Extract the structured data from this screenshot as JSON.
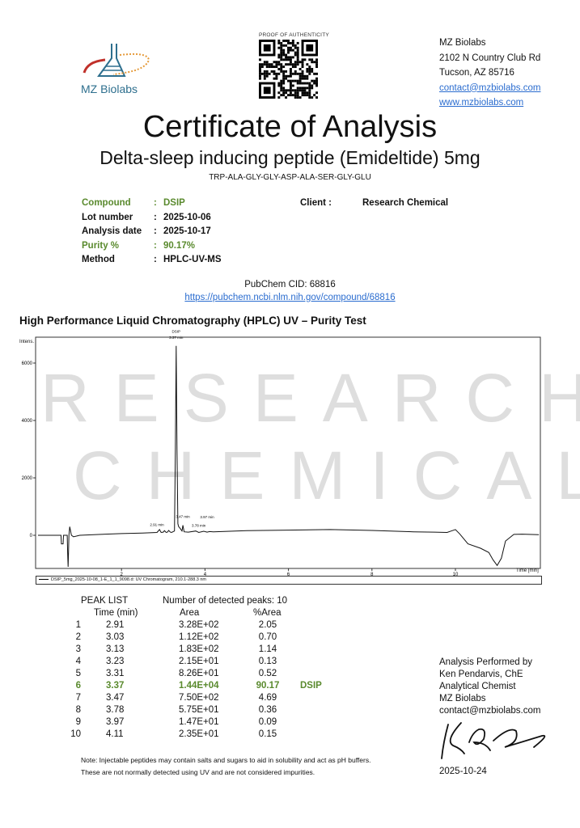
{
  "header": {
    "logo_text": "MZ Biolabs",
    "qr_label": "PROOF OF AUTHENTICITY",
    "address": {
      "company": "MZ Biolabs",
      "street": "2102 N Country Club Rd",
      "city": "Tucson, AZ 85716",
      "email": "contact@mzbiolabs.com",
      "website": "www.mzbiolabs.com"
    }
  },
  "title": "Certificate of Analysis",
  "subtitle": "Delta-sleep inducing peptide (Emideltide) 5mg",
  "sequence": "TRP-ALA-GLY-GLY-ASP-ALA-SER-GLY-GLU",
  "info": [
    {
      "label": "Compound",
      "value": "DSIP",
      "highlight": true
    },
    {
      "label": "Lot number",
      "value": "2025-10-06",
      "highlight": false
    },
    {
      "label": "Analysis date",
      "value": "2025-10-17",
      "highlight": false
    },
    {
      "label": "Purity %",
      "value": "90.17%",
      "highlight": true
    },
    {
      "label": "Method",
      "value": "HPLC-UV-MS",
      "highlight": false
    }
  ],
  "separator": ":",
  "client": {
    "label": "Client :",
    "value": "Research Chemical"
  },
  "pubchem": {
    "cid": "PubChem CID: 68816",
    "url": "https://pubchem.ncbi.nlm.nih.gov/compound/68816"
  },
  "section_title": "High Performance Liquid Chromatography (HPLC) UV – Purity Test",
  "watermark": {
    "line1": "RESEARCH",
    "line2": "CHEMICAL"
  },
  "colors": {
    "accent_green": "#5a8a2e",
    "link": "#2a6ccf",
    "logo_blue": "#2e6f8e"
  },
  "chart_data": {
    "type": "line",
    "ylabel": "Intens.",
    "xlabel": "Time [min]",
    "xlim": [
      0,
      12
    ],
    "ylim": [
      -1150,
      7200
    ],
    "xticks": [
      2,
      4,
      6,
      8,
      10
    ],
    "yticks": [
      0,
      2000,
      4000,
      6000
    ],
    "grid": false,
    "legend": "DSIP_5mg_2025-10-08_1-E_1_1_9098.d: UV Chromatogram, 210.1-288.3 nm",
    "legend_placement": "bottom",
    "peak_labels": [
      {
        "text": "DSIP",
        "x": 3.31,
        "y": 7050
      },
      {
        "text": "3.37 min",
        "x": 3.31,
        "y": 6850
      },
      {
        "text": "3.47 min",
        "x": 3.47,
        "y": 600
      },
      {
        "text": "2.91 min",
        "x": 2.85,
        "y": 330
      },
      {
        "text": "3.78 min",
        "x": 3.85,
        "y": 290
      },
      {
        "text": "3.97 min",
        "x": 4.05,
        "y": 250
      }
    ],
    "series": [
      {
        "x": [
          0,
          0.5,
          0.55,
          0.56,
          0.6,
          0.61,
          0.7,
          0.71,
          0.72,
          0.73,
          0.74,
          0.76,
          0.8,
          0.85,
          1.0,
          1.5,
          2.0,
          2.5,
          2.85,
          2.91,
          2.95,
          3.0,
          3.03,
          3.07,
          3.1,
          3.13,
          3.17,
          3.2,
          3.23,
          3.27,
          3.29,
          3.31,
          3.33,
          3.35,
          3.37,
          3.4,
          3.45,
          3.47,
          3.5,
          3.6,
          3.78,
          3.85,
          3.97,
          4.05,
          4.11,
          4.2,
          5,
          6,
          7,
          8,
          9,
          9.5,
          9.8,
          9.9,
          10.0,
          10.1,
          10.3,
          10.6,
          10.8,
          10.9,
          11.0,
          11.1,
          11.2,
          11.4,
          11.6,
          12
        ],
        "y": [
          0,
          0,
          0,
          -300,
          -300,
          0,
          0,
          -600,
          -1100,
          -600,
          0,
          300,
          0,
          -50,
          0,
          30,
          60,
          80,
          100,
          200,
          100,
          110,
          160,
          100,
          110,
          170,
          110,
          100,
          120,
          150,
          3000,
          6600,
          3000,
          400,
          300,
          250,
          150,
          350,
          120,
          110,
          150,
          100,
          140,
          110,
          130,
          120,
          160,
          180,
          200,
          170,
          120,
          110,
          100,
          150,
          200,
          50,
          -300,
          -450,
          -600,
          -850,
          -1050,
          -800,
          -200,
          30,
          40,
          20
        ]
      }
    ]
  },
  "peak_list": {
    "title": "PEAK LIST",
    "count_text": "Number of detected peaks: 10",
    "headers": [
      "Time (min)",
      "Area",
      "%Area"
    ],
    "rows": [
      {
        "n": "1",
        "time": "2.91",
        "area": "3.28E+02",
        "pct": "2.05",
        "name": ""
      },
      {
        "n": "2",
        "time": "3.03",
        "area": "1.12E+02",
        "pct": "0.70",
        "name": ""
      },
      {
        "n": "3",
        "time": "3.13",
        "area": "1.83E+02",
        "pct": "1.14",
        "name": ""
      },
      {
        "n": "4",
        "time": "3.23",
        "area": "2.15E+01",
        "pct": "0.13",
        "name": ""
      },
      {
        "n": "5",
        "time": "3.31",
        "area": "8.26E+01",
        "pct": "0.52",
        "name": ""
      },
      {
        "n": "6",
        "time": "3.37",
        "area": "1.44E+04",
        "pct": "90.17",
        "name": "DSIP"
      },
      {
        "n": "7",
        "time": "3.47",
        "area": "7.50E+02",
        "pct": "4.69",
        "name": ""
      },
      {
        "n": "8",
        "time": "3.78",
        "area": "5.75E+01",
        "pct": "0.36",
        "name": ""
      },
      {
        "n": "9",
        "time": "3.97",
        "area": "1.47E+01",
        "pct": "0.09",
        "name": ""
      },
      {
        "n": "10",
        "time": "4.11",
        "area": "2.35E+01",
        "pct": "0.15",
        "name": ""
      }
    ]
  },
  "note": [
    "Note: Injectable peptides may contain salts and sugars to aid in solubility and act as pH buffers.",
    "These are not normally detected using UV and are not considered impurities."
  ],
  "performed": {
    "lines": [
      "Analysis Performed by",
      "Ken Pendarvis, ChE",
      "Analytical Chemist",
      "MZ Biolabs",
      "contact@mzbiolabs.com"
    ],
    "date": "2025-10-24"
  }
}
